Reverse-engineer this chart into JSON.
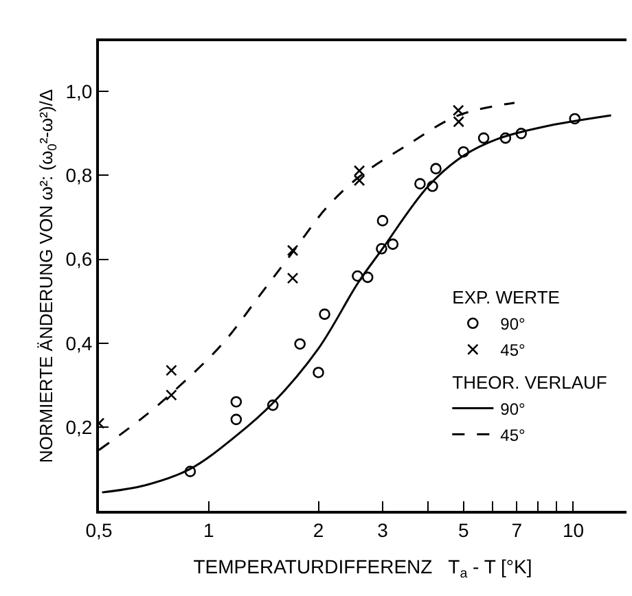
{
  "chart_data": {
    "type": "scatter",
    "xlabel": "TEMPERATURDIFFERENZ   T$_{a}$ - T [°K]",
    "ylabel": "NORMIERTE ÄNDERUNG VON ω²: (ω$_{0}$²-ω²)/Δ",
    "annotations": [
      "EXP. WERTE",
      "THEOR. VERLAUF"
    ],
    "series": [
      {
        "name": "90°",
        "color": "#000000",
        "marker": "circle",
        "x": [
          0.89,
          1.19,
          1.19,
          1.5,
          1.78,
          2.0,
          2.08,
          2.56,
          2.73,
          2.98,
          3.0,
          3.2,
          3.8,
          4.11,
          4.2,
          5.0,
          5.68,
          6.52,
          7.2,
          10.1
        ],
        "values": [
          0.094,
          0.218,
          0.26,
          0.252,
          0.398,
          0.33,
          0.469,
          0.56,
          0.557,
          0.625,
          0.692,
          0.636,
          0.78,
          0.774,
          0.816,
          0.856,
          0.889,
          0.889,
          0.9,
          0.935
        ]
      },
      {
        "name": "45°",
        "color": "#000000",
        "marker": "cross",
        "x": [
          0.5,
          0.79,
          0.79,
          1.7,
          1.7,
          2.59,
          2.59,
          4.84,
          4.85
        ],
        "values": [
          0.209,
          0.335,
          0.276,
          0.621,
          0.555,
          0.811,
          0.788,
          0.955,
          0.928
        ]
      },
      {
        "type": "line",
        "name": "90°",
        "color": "#000000",
        "line_style": "solid",
        "x": [
          0.51,
          0.67,
          0.89,
          1.19,
          1.5,
          2.0,
          2.57,
          2.98,
          4.0,
          5.0,
          6.2,
          8.2,
          12.7
        ],
        "values": [
          0.044,
          0.061,
          0.1,
          0.179,
          0.257,
          0.387,
          0.544,
          0.622,
          0.774,
          0.847,
          0.887,
          0.915,
          0.943
        ]
      },
      {
        "type": "line",
        "name": "45°",
        "color": "#000000",
        "line_style": "dashed",
        "x": [
          0.5,
          0.65,
          0.79,
          1.09,
          1.37,
          1.7,
          2.11,
          2.59,
          3.5,
          4.84,
          6.9
        ],
        "values": [
          0.145,
          0.218,
          0.28,
          0.398,
          0.51,
          0.617,
          0.724,
          0.797,
          0.872,
          0.943,
          0.973
        ]
      }
    ],
    "log": "x",
    "grid": false,
    "legend": "right",
    "xlim": [
      0.5,
      14
    ],
    "ylim": [
      0,
      1.12
    ],
    "xticks": [
      {
        "value": 0.5,
        "label": "0,5"
      },
      1,
      2,
      3,
      {
        "value": 4,
        "label": null
      },
      5,
      {
        "value": 6,
        "label": null
      },
      7,
      {
        "value": 8,
        "label": null
      },
      {
        "value": 9,
        "label": null
      },
      10
    ],
    "yticks": [
      {
        "value": 0.2,
        "label": "0,2"
      },
      {
        "value": 0.4,
        "label": "0,4"
      },
      {
        "value": 0.6,
        "label": "0,6"
      },
      {
        "value": 0.8,
        "label": "0,8"
      },
      {
        "value": 1.0,
        "label": "1,0"
      }
    ]
  }
}
